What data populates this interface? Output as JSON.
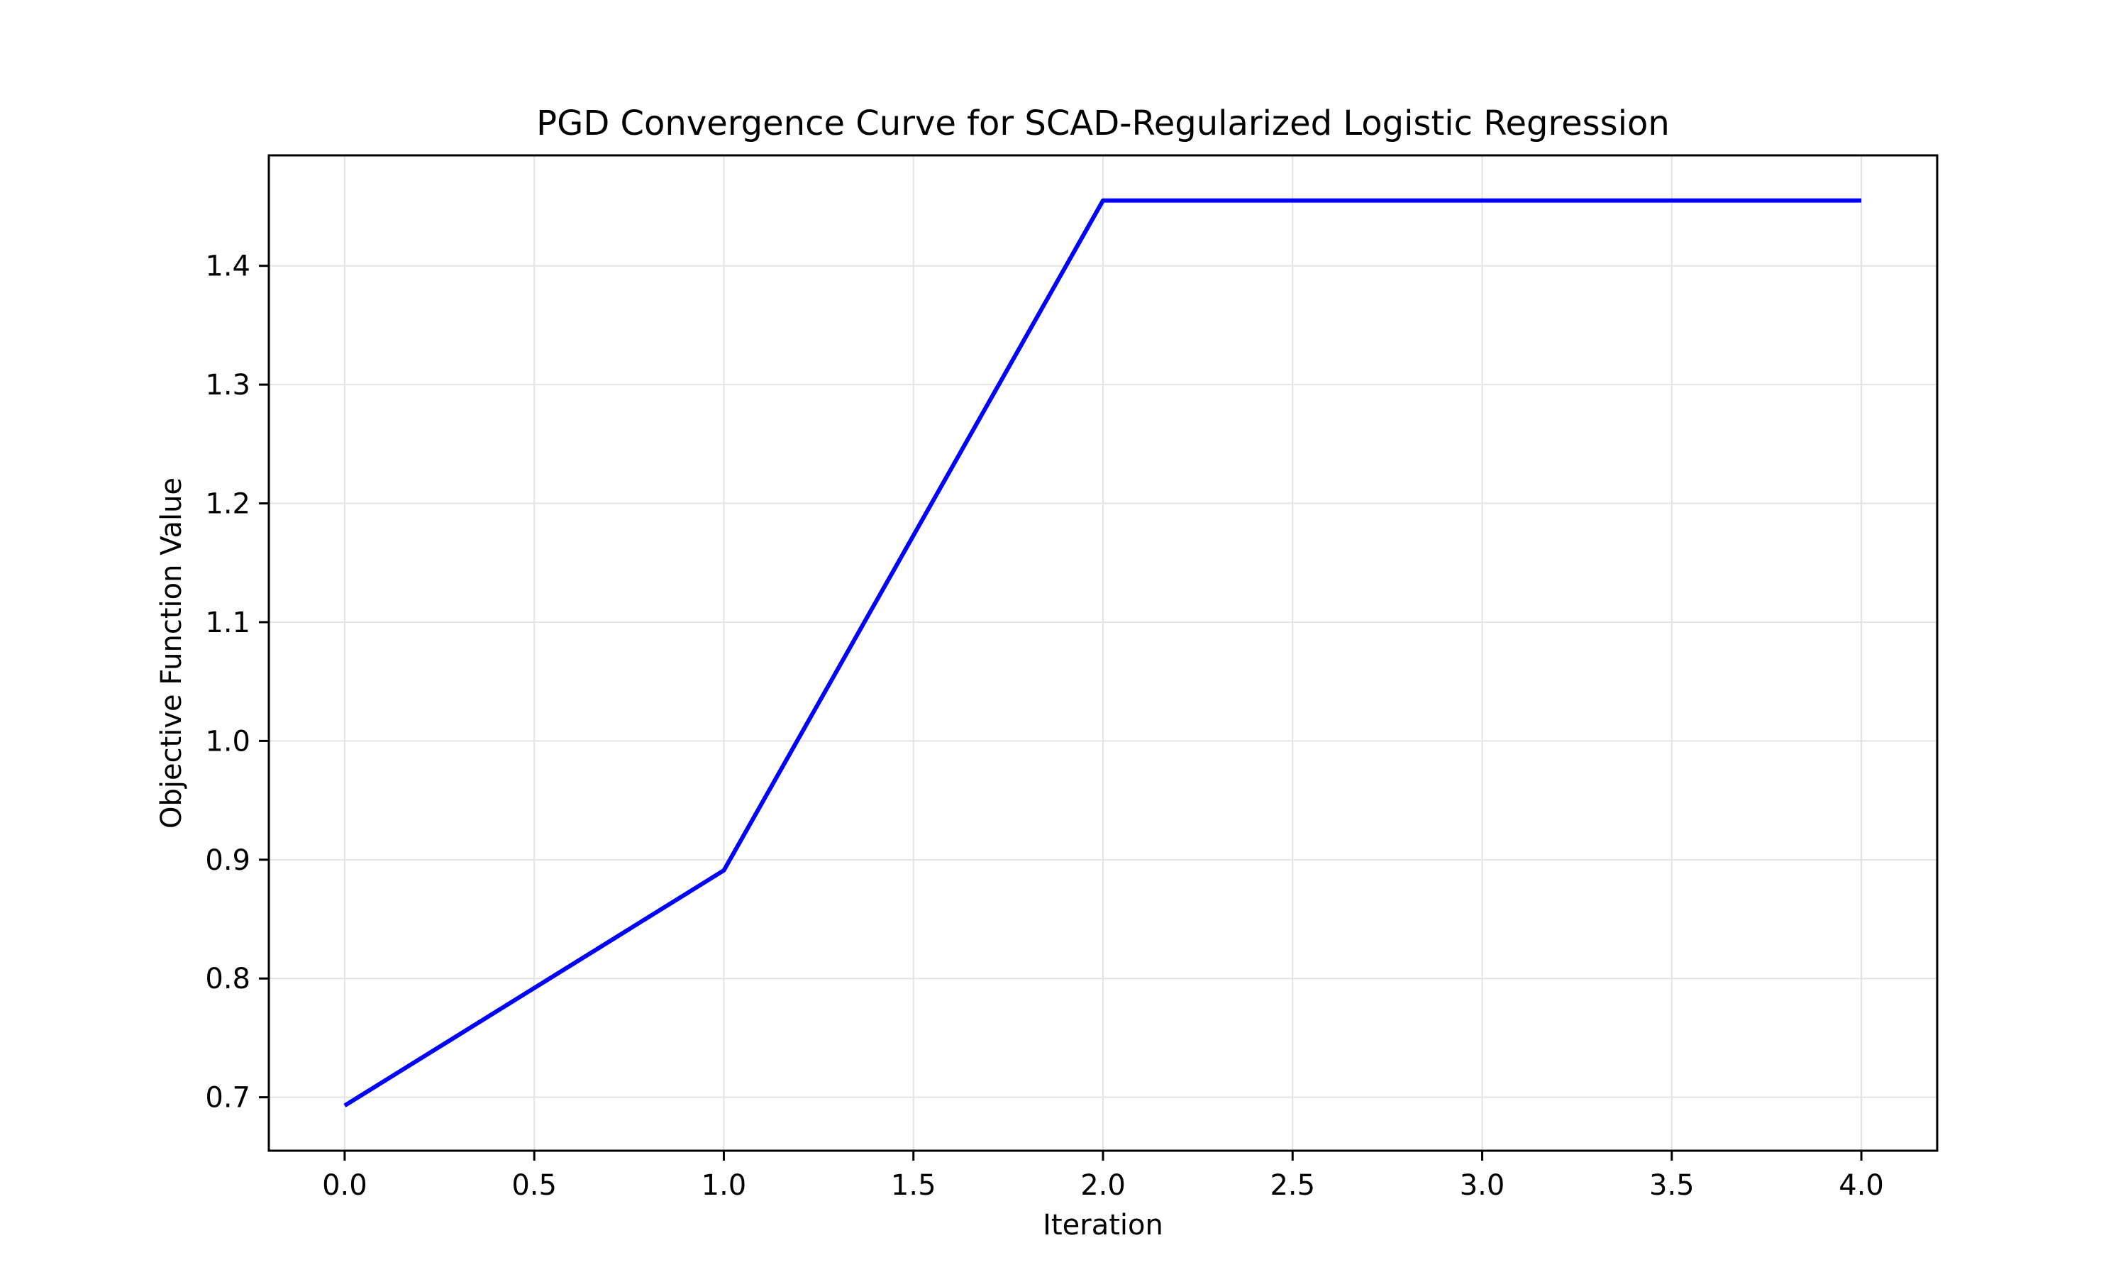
{
  "chart_data": {
    "type": "line",
    "title": "PGD Convergence Curve for SCAD-Regularized Logistic Regression",
    "xlabel": "Iteration",
    "ylabel": "Objective Function Value",
    "x": [
      0,
      1,
      2,
      3,
      4
    ],
    "series": [
      {
        "values": [
          0.693,
          0.891,
          1.455,
          1.455,
          1.455
        ],
        "color": "#0000ff"
      }
    ],
    "xlim": [
      -0.2,
      4.2
    ],
    "ylim": [
      0.655,
      1.493
    ],
    "xticks": [
      0.0,
      0.5,
      1.0,
      1.5,
      2.0,
      2.5,
      3.0,
      3.5,
      4.0
    ],
    "xtick_labels": [
      "0.0",
      "0.5",
      "1.0",
      "1.5",
      "2.0",
      "2.5",
      "3.0",
      "3.5",
      "4.0"
    ],
    "yticks": [
      0.7,
      0.8,
      0.9,
      1.0,
      1.1,
      1.2,
      1.3,
      1.4
    ],
    "ytick_labels": [
      "0.7",
      "0.8",
      "0.9",
      "1.0",
      "1.1",
      "1.2",
      "1.3",
      "1.4"
    ],
    "grid": true,
    "grid_color": "#e3e3e3",
    "axis_color": "#000000"
  }
}
